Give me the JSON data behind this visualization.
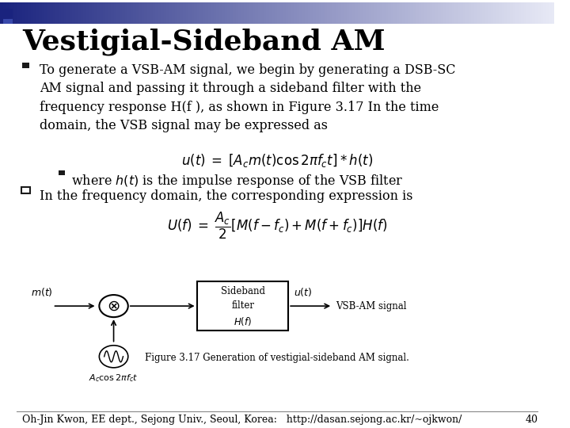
{
  "title": "Vestigial-Sideband AM",
  "bg_color": "#ffffff",
  "header_bar_left_color": "#1a237e",
  "header_bar_right_color": "#e8eaf6",
  "bullet_color": "#1a1a1a",
  "text_color": "#000000",
  "figure_caption": "Figure 3.17 Generation of vestigial-sideband AM signal.",
  "footer": "Oh-Jin Kwon, EE dept., Sejong Univ., Seoul, Korea:   http://dasan.sejong.ac.kr/~ojkwon/",
  "page_number": "40",
  "title_fontsize": 26,
  "body_fontsize": 11.5,
  "footer_fontsize": 9
}
